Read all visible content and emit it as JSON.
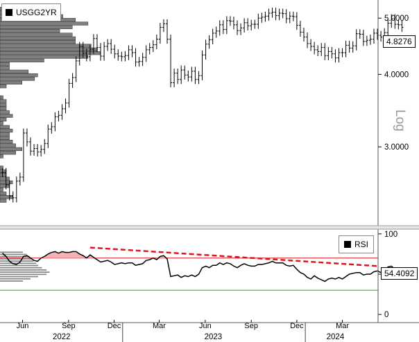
{
  "legend": {
    "price_label": "USGG2YR",
    "rsi_label": "RSI"
  },
  "last_values": {
    "price": "4.8276",
    "rsi": "54.4092"
  },
  "axis_text": {
    "log_label": "Log"
  },
  "colors": {
    "price_line": "#000000",
    "volume_profile_fill": "#7f7f7f",
    "rsi_line": "#000000",
    "rsi_overbought_line": "#e0141e",
    "rsi_oversold_line": "#19b419",
    "rsi_trend_line": "#e0141e",
    "rsi_overbought_fill": "#f4b4b4"
  },
  "chart_data": [
    {
      "type": "ohlc",
      "series_name": "USGG2YR",
      "scale": "log",
      "ylim": [
        2.2,
        5.3
      ],
      "y_ticks": [
        {
          "value": 3.0,
          "label": "3.0000"
        },
        {
          "value": 4.0,
          "label": "4.0000"
        },
        {
          "value": 5.0,
          "label": "5.0000"
        }
      ],
      "x_labels": {
        "months": [
          "Jun",
          "Sep",
          "Dec",
          "Mar",
          "Jun",
          "Sep",
          "Dec",
          "Mar"
        ],
        "years": [
          "2022",
          "2023",
          "2024"
        ]
      },
      "x_range": [
        "2022-05-01",
        "2024-05-17"
      ],
      "weekly_values": {
        "start": "2022-05-06",
        "interval_days": 7,
        "close": [
          2.71,
          2.58,
          2.47,
          2.45,
          2.62,
          2.66,
          3.17,
          3.06,
          2.95,
          2.98,
          2.94,
          2.97,
          3.04,
          3.22,
          3.25,
          3.38,
          3.4,
          3.49,
          3.57,
          3.86,
          3.95,
          4.22,
          4.47,
          4.35,
          4.29,
          4.42,
          4.61,
          4.45,
          4.3,
          4.47,
          4.52,
          4.42,
          4.34,
          4.3,
          4.29,
          4.31,
          4.41,
          4.36,
          4.2,
          4.21,
          4.28,
          4.41,
          4.45,
          4.5,
          4.6,
          4.82,
          4.89,
          4.6,
          3.87,
          4.02,
          3.92,
          4.07,
          3.99,
          3.96,
          4.05,
          3.92,
          3.98,
          4.32,
          4.51,
          4.59,
          4.71,
          4.75,
          4.87,
          4.78,
          4.95,
          4.94,
          4.87,
          4.76,
          4.81,
          4.91,
          4.85,
          4.88,
          4.88,
          5.0,
          5.02,
          5.04,
          5.1,
          5.12,
          5.05,
          5.1,
          5.09,
          4.99,
          5.04,
          5.03,
          4.86,
          4.73,
          4.64,
          4.52,
          4.47,
          4.41,
          4.38,
          4.45,
          4.31,
          4.38,
          4.34,
          4.27,
          4.36,
          4.36,
          4.49,
          4.44,
          4.48,
          4.7,
          4.69,
          4.56,
          4.58,
          4.6,
          4.71,
          4.67,
          4.64,
          4.72,
          4.9,
          4.99,
          4.88,
          4.87,
          4.82
        ]
      },
      "volume_profile": "horizontal bars at left edge, concentrated around 4.25–4.95 and 2.3–3.4"
    },
    {
      "type": "line",
      "series_name": "RSI",
      "ylim": [
        -5,
        105
      ],
      "y_ticks": [
        0,
        50,
        100
      ],
      "overbought": 70,
      "oversold": 30,
      "trend_line": {
        "from": {
          "date": "2022-10-28",
          "value": 83
        },
        "to": {
          "date": "2024-05-17",
          "value": 60
        }
      },
      "weekly_values": {
        "start": "2022-05-06",
        "interval_days": 7,
        "values": [
          76,
          72,
          66,
          63,
          62,
          65,
          72,
          73,
          70,
          67,
          66,
          70,
          72,
          75,
          77,
          78,
          76,
          78,
          77,
          77,
          78,
          78,
          75,
          73,
          70,
          74,
          71,
          68,
          65,
          66,
          67,
          65,
          62,
          63,
          64,
          63,
          64,
          64,
          61,
          62,
          63,
          67,
          68,
          70,
          68,
          72,
          73,
          69,
          47,
          48,
          49,
          46,
          48,
          47,
          49,
          47,
          50,
          58,
          60,
          58,
          61,
          61,
          64,
          62,
          64,
          63,
          60,
          58,
          61,
          63,
          61,
          60,
          60,
          62,
          62,
          63,
          64,
          66,
          64,
          64,
          64,
          61,
          60,
          61,
          56,
          52,
          50,
          46,
          44,
          48,
          45,
          43,
          41,
          44,
          45,
          44,
          46,
          44,
          47,
          50,
          51,
          52,
          52,
          49,
          50,
          50,
          53,
          54,
          52,
          53,
          59,
          60,
          56,
          53,
          54
        ]
      },
      "last_value": 54.4092
    }
  ]
}
